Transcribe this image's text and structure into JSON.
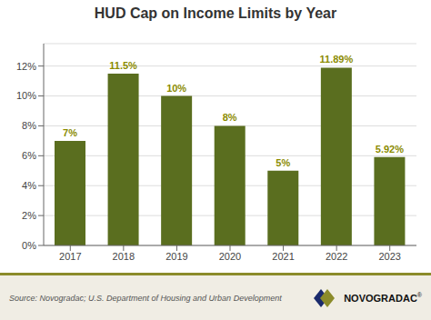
{
  "chart_data": {
    "type": "bar",
    "title": "HUD Cap on Income Limits by Year",
    "categories": [
      "2017",
      "2018",
      "2019",
      "2020",
      "2021",
      "2022",
      "2023"
    ],
    "values": [
      7.0,
      11.5,
      10.0,
      8.0,
      5.0,
      11.89,
      5.92
    ],
    "value_labels": [
      "7%",
      "11.5%",
      "10%",
      "8%",
      "5%",
      "11.89%",
      "5.92%"
    ],
    "data_labels": true,
    "color": "#5a6e1f",
    "ylim": [
      0,
      13.5
    ],
    "yticks": [
      {
        "value": 0,
        "label": "0%"
      },
      {
        "value": 2,
        "label": "2%"
      },
      {
        "value": 4,
        "label": "4%"
      },
      {
        "value": 6,
        "label": "6%"
      },
      {
        "value": 8,
        "label": "8%"
      },
      {
        "value": 10,
        "label": "10%"
      },
      {
        "value": 12,
        "label": "12%"
      }
    ],
    "grid": true,
    "annotations": [
      "Source: Novogradac; U.S. Department of Housing and Urban Development",
      "NOVOGRADAC",
      "®"
    ]
  }
}
